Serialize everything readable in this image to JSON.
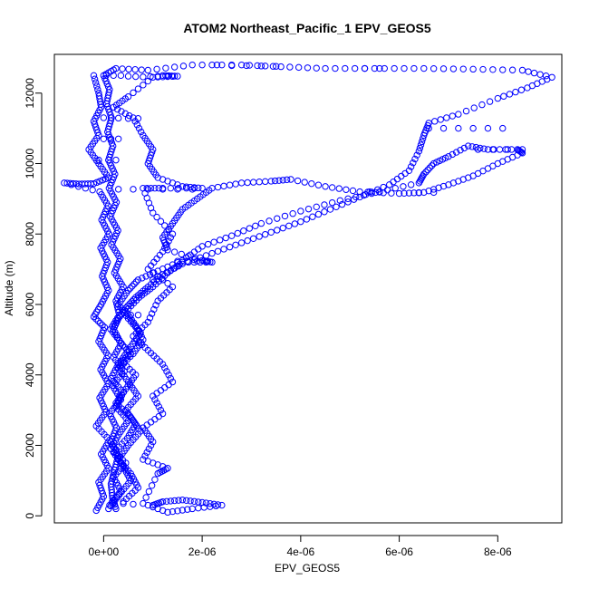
{
  "chart_data": {
    "type": "scatter",
    "title": "ATOM2 Northeast_Pacific_1 EPV_GEOS5",
    "xlabel": "EPV_GEOS5",
    "ylabel": "Altitude (m)",
    "xlim": [
      -1e-06,
      9.3e-06
    ],
    "ylim": [
      -200,
      13100
    ],
    "x_ticks": [
      0,
      2e-06,
      4e-06,
      6e-06,
      8e-06
    ],
    "x_tick_labels": [
      "0e+00",
      "2e-06",
      "4e-06",
      "6e-06",
      "8e-06"
    ],
    "y_ticks": [
      0,
      2000,
      4000,
      6000,
      8000,
      10000,
      12000
    ],
    "y_tick_labels": [
      "0",
      "2000",
      "4000",
      "6000",
      "8000",
      "10000",
      "12000"
    ],
    "marker": "open-circle",
    "color": "#0000ff",
    "series": [
      {
        "points": [
          [
            2.5e-07,
            200
          ],
          [
            1.8e-07,
            500
          ],
          [
            1.5e-07,
            900
          ],
          [
            2.2e-07,
            1300
          ],
          [
            3e-07,
            1700
          ],
          [
            1.5e-07,
            2100
          ],
          [
            2.6e-07,
            2500
          ],
          [
            1.2e-07,
            2900
          ],
          [
            3.5e-07,
            3300
          ],
          [
            1.8e-07,
            3700
          ],
          [
            4.2e-07,
            4100
          ],
          [
            2e-07,
            4500
          ],
          [
            3.6e-07,
            4900
          ],
          [
            1.4e-07,
            5300
          ],
          [
            3.2e-07,
            5700
          ],
          [
            2.5e-07,
            6100
          ],
          [
            4e-07,
            6500
          ],
          [
            2.2e-07,
            6900
          ],
          [
            3.4e-07,
            7300
          ],
          [
            1.6e-07,
            7700
          ],
          [
            2.9e-07,
            8100
          ],
          [
            1.3e-07,
            8500
          ],
          [
            2.6e-07,
            8900
          ],
          [
            1.1e-07,
            9300
          ],
          [
            2.3e-07,
            9700
          ],
          [
            1e-07,
            10100
          ],
          [
            1.9e-07,
            10500
          ],
          [
            8e-08,
            10900
          ],
          [
            1.6e-07,
            11300
          ],
          [
            6e-08,
            11700
          ],
          [
            1.2e-07,
            12100
          ],
          [
            0.0,
            12500
          ],
          [
            2.5e-07,
            12700
          ],
          [
            9e-07,
            12650
          ],
          [
            1.8e-06,
            12800
          ],
          [
            2.8e-06,
            12800
          ],
          [
            3.6e-06,
            12750
          ],
          [
            4.5e-06,
            12700
          ],
          [
            5.5e-06,
            12700
          ],
          [
            6.5e-06,
            12700
          ],
          [
            7.5e-06,
            12680
          ],
          [
            8.5e-06,
            12650
          ],
          [
            9.1e-06,
            12450
          ],
          [
            8.6e-06,
            12150
          ],
          [
            8e-06,
            11850
          ],
          [
            7.2e-06,
            11400
          ],
          [
            6.6e-06,
            11150
          ],
          [
            6.5e-06,
            10800
          ],
          [
            6.4e-06,
            10350
          ],
          [
            6.2e-06,
            9800
          ],
          [
            5.8e-06,
            9400
          ],
          [
            5.2e-06,
            9050
          ],
          [
            4.6e-06,
            8700
          ],
          [
            4e-06,
            8350
          ],
          [
            3.4e-06,
            8050
          ],
          [
            2.8e-06,
            7750
          ],
          [
            2.2e-06,
            7450
          ],
          [
            1.6e-06,
            7150
          ],
          [
            1.2e-06,
            6850
          ],
          [
            9e-07,
            6500
          ],
          [
            6.5e-07,
            6200
          ],
          [
            4.5e-07,
            5900
          ],
          [
            3e-07,
            5600
          ],
          [
            2e-07,
            5300
          ],
          [
            3.5e-07,
            4900
          ],
          [
            5.5e-07,
            4600
          ],
          [
            3e-07,
            4300
          ],
          [
            1.5e-07,
            3900
          ],
          [
            4e-07,
            3500
          ],
          [
            2.5e-07,
            3100
          ],
          [
            5e-07,
            2700
          ],
          [
            3e-07,
            2300
          ],
          [
            1.5e-07,
            1900
          ],
          [
            4.5e-07,
            1500
          ],
          [
            2e-07,
            1100
          ],
          [
            3.5e-07,
            700
          ],
          [
            1.2e-07,
            300
          ]
        ]
      },
      {
        "points": [
          [
            1e-07,
            200
          ],
          [
            3.2e-07,
            600
          ],
          [
            5.5e-07,
            1000
          ],
          [
            4e-07,
            1400
          ],
          [
            2e-07,
            1800
          ],
          [
            4.8e-07,
            2200
          ],
          [
            6.5e-07,
            2600
          ],
          [
            4.5e-07,
            3000
          ],
          [
            7e-07,
            3400
          ],
          [
            5e-07,
            3800
          ],
          [
            3e-07,
            4200
          ],
          [
            6e-07,
            4600
          ],
          [
            8e-07,
            5000
          ],
          [
            6.5e-07,
            5400
          ],
          [
            4.5e-07,
            5800
          ],
          [
            7.2e-07,
            6200
          ],
          [
            1e-06,
            6500
          ],
          [
            1.3e-06,
            6900
          ],
          [
            1.6e-06,
            7200
          ],
          [
            2.2e-06,
            7200
          ],
          [
            2e-06,
            7250
          ],
          [
            1.3e-06,
            7550
          ],
          [
            1.2e-06,
            7900
          ],
          [
            1.4e-06,
            8300
          ],
          [
            1.6e-06,
            8700
          ],
          [
            1.9e-06,
            9000
          ],
          [
            2.2e-06,
            9300
          ],
          [
            2.8e-06,
            9450
          ],
          [
            3.4e-06,
            9500
          ],
          [
            3.8e-06,
            9550
          ],
          [
            4.5e-06,
            9350
          ],
          [
            5.2e-06,
            9200
          ],
          [
            6e-06,
            9150
          ],
          [
            6.5e-06,
            9180
          ],
          [
            7e-06,
            9400
          ],
          [
            7.5e-06,
            9650
          ],
          [
            8e-06,
            10000
          ],
          [
            8.5e-06,
            10300
          ],
          [
            8.4e-06,
            10400
          ],
          [
            7.8e-06,
            10400
          ],
          [
            7.4e-06,
            10500
          ],
          [
            7e-06,
            10200
          ],
          [
            6.7e-06,
            10000
          ],
          [
            6.5e-06,
            9700
          ],
          [
            6.4e-06,
            9450
          ],
          [
            5.6e-06,
            9200
          ],
          [
            4.8e-06,
            8950
          ],
          [
            4e-06,
            8650
          ],
          [
            3.2e-06,
            8300
          ],
          [
            2.6e-06,
            7950
          ],
          [
            2e-06,
            7650
          ],
          [
            1.6e-06,
            7250
          ],
          [
            1.1e-06,
            6950
          ],
          [
            7e-07,
            6700
          ],
          [
            5e-07,
            6400
          ],
          [
            3e-07,
            6000
          ],
          [
            5e-07,
            5600
          ],
          [
            7.5e-07,
            5200
          ],
          [
            5.5e-07,
            4800
          ],
          [
            3.5e-07,
            4400
          ],
          [
            6.5e-07,
            4000
          ],
          [
            4.5e-07,
            3600
          ],
          [
            2.5e-07,
            3200
          ],
          [
            5.5e-07,
            2800
          ],
          [
            7.5e-07,
            2400
          ],
          [
            5e-07,
            2000
          ],
          [
            3e-07,
            1600
          ],
          [
            5.5e-07,
            1200
          ],
          [
            7e-07,
            800
          ],
          [
            4e-07,
            400
          ]
        ]
      },
      {
        "points": [
          [
            -1.5e-07,
            150
          ],
          [
            0.0,
            550
          ],
          [
            -1e-07,
            950
          ],
          [
            1e-07,
            1350
          ],
          [
            -5e-08,
            1750
          ],
          [
            1.2e-07,
            2150
          ],
          [
            -1.5e-07,
            2550
          ],
          [
            5e-08,
            2950
          ],
          [
            -8e-08,
            3350
          ],
          [
            1e-07,
            3750
          ],
          [
            -6e-08,
            4150
          ],
          [
            9e-08,
            4550
          ],
          [
            -1e-07,
            4950
          ],
          [
            2e-08,
            5350
          ],
          [
            -2e-07,
            5650
          ],
          [
            -5e-08,
            6000
          ],
          [
            1e-07,
            6400
          ],
          [
            -3e-08,
            6800
          ],
          [
            8e-08,
            7200
          ],
          [
            -6e-08,
            7600
          ],
          [
            1.1e-07,
            8000
          ],
          [
            -4e-08,
            8400
          ],
          [
            9e-08,
            8800
          ],
          [
            -8e-08,
            9200
          ],
          [
            -8e-07,
            9450
          ],
          [
            -5e-07,
            9420
          ],
          [
            -2e-07,
            9430
          ],
          [
            1e-07,
            9600
          ],
          [
            -1e-07,
            10000
          ],
          [
            -3e-07,
            10400
          ],
          [
            -1e-07,
            10800
          ],
          [
            -2e-07,
            11200
          ],
          [
            -5e-08,
            11600
          ],
          [
            -1e-07,
            12000
          ],
          [
            -2e-07,
            12500
          ]
        ]
      },
      {
        "points": [
          [
            1e-06,
            300
          ],
          [
            1.2e-06,
            400
          ],
          [
            1.6e-06,
            450
          ],
          [
            2e-06,
            380
          ],
          [
            2.4e-06,
            300
          ],
          [
            1.8e-06,
            200
          ],
          [
            1.3e-06,
            100
          ],
          [
            8e-07,
            350
          ],
          [
            1.1e-06,
            1200
          ],
          [
            1.3e-06,
            1350
          ],
          [
            8e-07,
            1600
          ],
          [
            1e-06,
            2100
          ],
          [
            8e-07,
            2500
          ],
          [
            1.2e-06,
            2900
          ],
          [
            1e-06,
            3400
          ],
          [
            1.4e-06,
            3800
          ],
          [
            1.2e-06,
            4300
          ],
          [
            9e-07,
            4700
          ],
          [
            6e-07,
            5100
          ],
          [
            9e-07,
            5500
          ],
          [
            1.1e-06,
            6100
          ],
          [
            1.4e-06,
            6500
          ],
          [
            9e-07,
            7000
          ],
          [
            1.2e-06,
            7500
          ],
          [
            1.4e-06,
            8000
          ],
          [
            1e-06,
            8600
          ],
          [
            8e-07,
            9300
          ],
          [
            1.2e-06,
            9300
          ],
          [
            2e-06,
            9300
          ],
          [
            1.6e-06,
            9350
          ],
          [
            1.1e-06,
            9600
          ],
          [
            9e-07,
            10000
          ],
          [
            1e-06,
            10400
          ],
          [
            8e-07,
            10800
          ],
          [
            6e-07,
            11300
          ],
          [
            2e-07,
            11600
          ],
          [
            5e-07,
            11900
          ],
          [
            1e-06,
            12450
          ],
          [
            1.5e-06,
            12480
          ],
          [
            1.2e-06,
            12500
          ]
        ]
      },
      {
        "points": [
          [
            5e-08,
            12500
          ],
          [
            2e-07,
            12500
          ],
          [
            3.5e-07,
            12500
          ],
          [
            5e-07,
            12480
          ],
          [
            6.5e-07,
            12470
          ],
          [
            8e-07,
            12460
          ],
          [
            9.5e-07,
            12470
          ],
          [
            1.1e-06,
            12480
          ],
          [
            1.3e-06,
            12480
          ],
          [
            0.0,
            11300
          ],
          [
            1.5e-07,
            11300
          ],
          [
            3e-07,
            11290
          ],
          [
            5e-07,
            11280
          ],
          [
            7e-07,
            11280
          ],
          [
            0.0,
            10700
          ],
          [
            1.5e-07,
            10700
          ],
          [
            3e-07,
            10700
          ],
          [
            -1e-07,
            10100
          ],
          [
            1e-07,
            10100
          ],
          [
            2.5e-07,
            10100
          ],
          [
            3e-07,
            9270
          ],
          [
            6e-07,
            9270
          ],
          [
            9e-07,
            9270
          ],
          [
            1.2e-06,
            9270
          ],
          [
            1.5e-06,
            9270
          ],
          [
            1.8e-06,
            9270
          ],
          [
            1.5e-06,
            7230
          ],
          [
            1.7e-06,
            7230
          ],
          [
            1.9e-06,
            7230
          ],
          [
            2.1e-06,
            7230
          ],
          [
            1e-06,
            6700
          ],
          [
            1.2e-06,
            6700
          ],
          [
            5.5e-07,
            5700
          ],
          [
            7e-07,
            5700
          ],
          [
            2.3e-06,
            12800
          ],
          [
            2.6e-06,
            12780
          ],
          [
            2.9e-06,
            12780
          ],
          [
            3.2e-06,
            12770
          ],
          [
            3.5e-06,
            12760
          ],
          [
            5.3e-06,
            12700
          ],
          [
            5.6e-06,
            12700
          ],
          [
            6.6e-06,
            11000
          ],
          [
            6.9e-06,
            11000
          ],
          [
            7.2e-06,
            11000
          ],
          [
            7.5e-06,
            11000
          ],
          [
            7.8e-06,
            11000
          ],
          [
            8.1e-06,
            11000
          ],
          [
            7.6e-06,
            10400
          ],
          [
            7.9e-06,
            10400
          ],
          [
            8.2e-06,
            10400
          ],
          [
            8.5e-06,
            10400
          ],
          [
            6.4e-06,
            9170
          ],
          [
            6.7e-06,
            9180
          ],
          [
            5.4e-06,
            9200
          ],
          [
            5.6e-06,
            9190
          ],
          [
            4e-07,
            350
          ],
          [
            6e-07,
            330
          ]
        ]
      }
    ]
  }
}
